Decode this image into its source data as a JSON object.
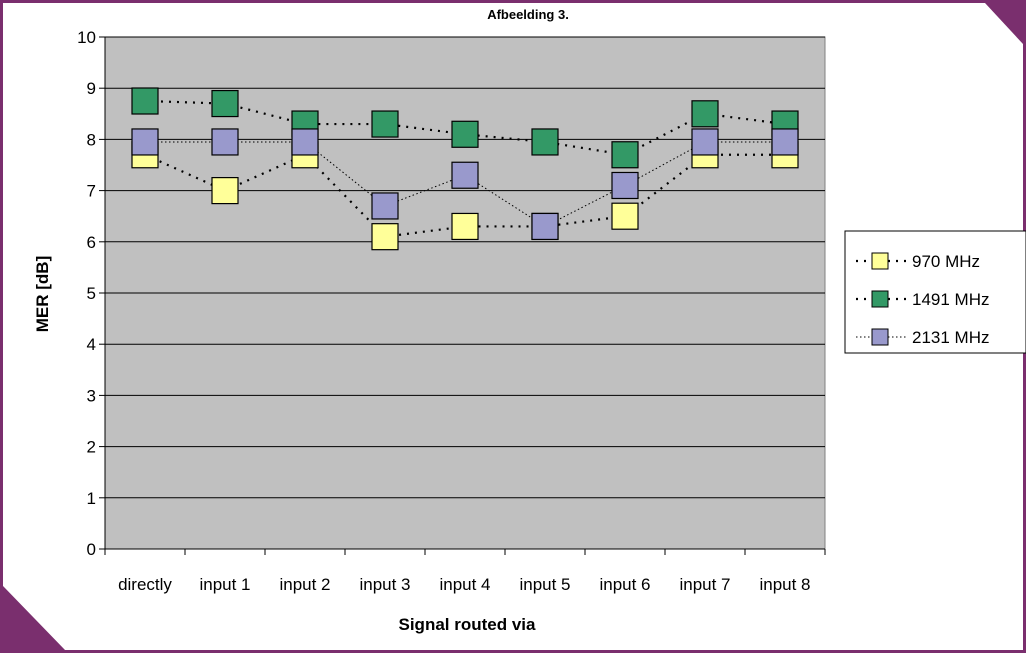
{
  "chart_data": {
    "type": "line",
    "title": "Afbeelding 3.",
    "xlabel": "Signal routed via",
    "ylabel": "MER [dB]",
    "ylim": [
      0,
      10
    ],
    "yticks": [
      0,
      1,
      2,
      3,
      4,
      5,
      6,
      7,
      8,
      9,
      10
    ],
    "categories": [
      "directly",
      "input 1",
      "input 2",
      "input 3",
      "input 4",
      "input 5",
      "input 6",
      "input 7",
      "input 8"
    ],
    "grid": true,
    "legend": "right",
    "series": [
      {
        "name": "970 MHz",
        "color": "#ffff99",
        "values": [
          7.7,
          7.0,
          7.7,
          6.1,
          6.3,
          6.3,
          6.5,
          7.7,
          7.7
        ]
      },
      {
        "name": "1491 MHz",
        "color": "#339966",
        "values": [
          8.75,
          8.7,
          8.3,
          8.3,
          8.1,
          7.95,
          7.7,
          8.5,
          8.3
        ]
      },
      {
        "name": "2131 MHz",
        "color": "#9999cc",
        "values": [
          7.95,
          7.95,
          7.95,
          6.7,
          7.3,
          6.3,
          7.1,
          7.95,
          7.95
        ]
      }
    ]
  }
}
